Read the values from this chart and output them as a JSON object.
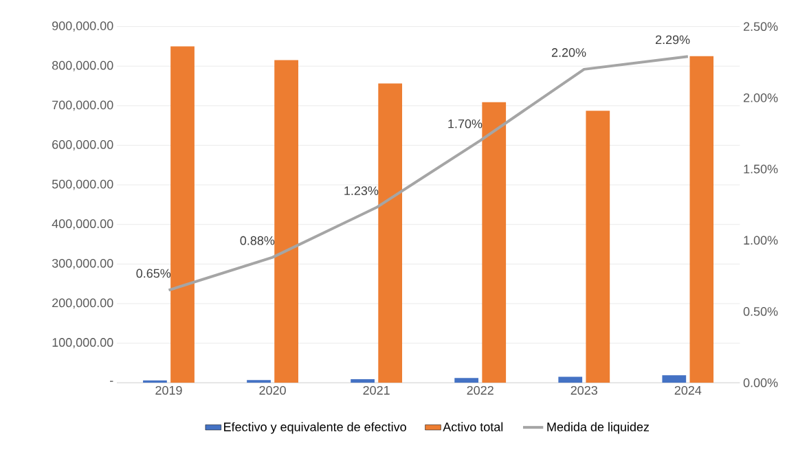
{
  "chart_data": {
    "type": "bar",
    "categories": [
      "2019",
      "2020",
      "2021",
      "2022",
      "2023",
      "2024"
    ],
    "series": [
      {
        "name": "Efectivo y equivalente de efectivo",
        "color": "#4472c4",
        "values": [
          6000,
          7000,
          9000,
          12000,
          15000,
          19000
        ]
      },
      {
        "name": "Activo total",
        "color": "#ed7d31",
        "values": [
          850000,
          815000,
          756000,
          709000,
          687000,
          825000
        ]
      },
      {
        "name": "Medida de liquidez",
        "type": "line",
        "axis": "y2",
        "color": "#a5a5a5",
        "marker": "none",
        "values": [
          0.65,
          0.88,
          1.23,
          1.7,
          2.2,
          2.29
        ],
        "value_labels": [
          "0.65%",
          "0.88%",
          "1.23%",
          "1.70%",
          "2.20%",
          "2.29%"
        ]
      }
    ],
    "ylim": [
      0,
      900000
    ],
    "yticks": [
      {
        "value": 0,
        "label": "-"
      },
      {
        "value": 100000,
        "label": "100,000.00"
      },
      {
        "value": 200000,
        "label": "200,000.00"
      },
      {
        "value": 300000,
        "label": "300,000.00"
      },
      {
        "value": 400000,
        "label": "400,000.00"
      },
      {
        "value": 500000,
        "label": "500,000.00"
      },
      {
        "value": 600000,
        "label": "600,000.00"
      },
      {
        "value": 700000,
        "label": "700,000.00"
      },
      {
        "value": 800000,
        "label": "800,000.00"
      },
      {
        "value": 900000,
        "label": "900,000.00"
      }
    ],
    "y2lim": [
      0,
      2.5
    ],
    "y2ticks": [
      {
        "value": 0,
        "label": "0.00%"
      },
      {
        "value": 0.5,
        "label": "0.50%"
      },
      {
        "value": 1.0,
        "label": "1.00%"
      },
      {
        "value": 1.5,
        "label": "1.50%"
      },
      {
        "value": 2.0,
        "label": "2.00%"
      },
      {
        "value": 2.5,
        "label": "2.50%"
      }
    ],
    "grid": "y",
    "legend": "bottom"
  }
}
